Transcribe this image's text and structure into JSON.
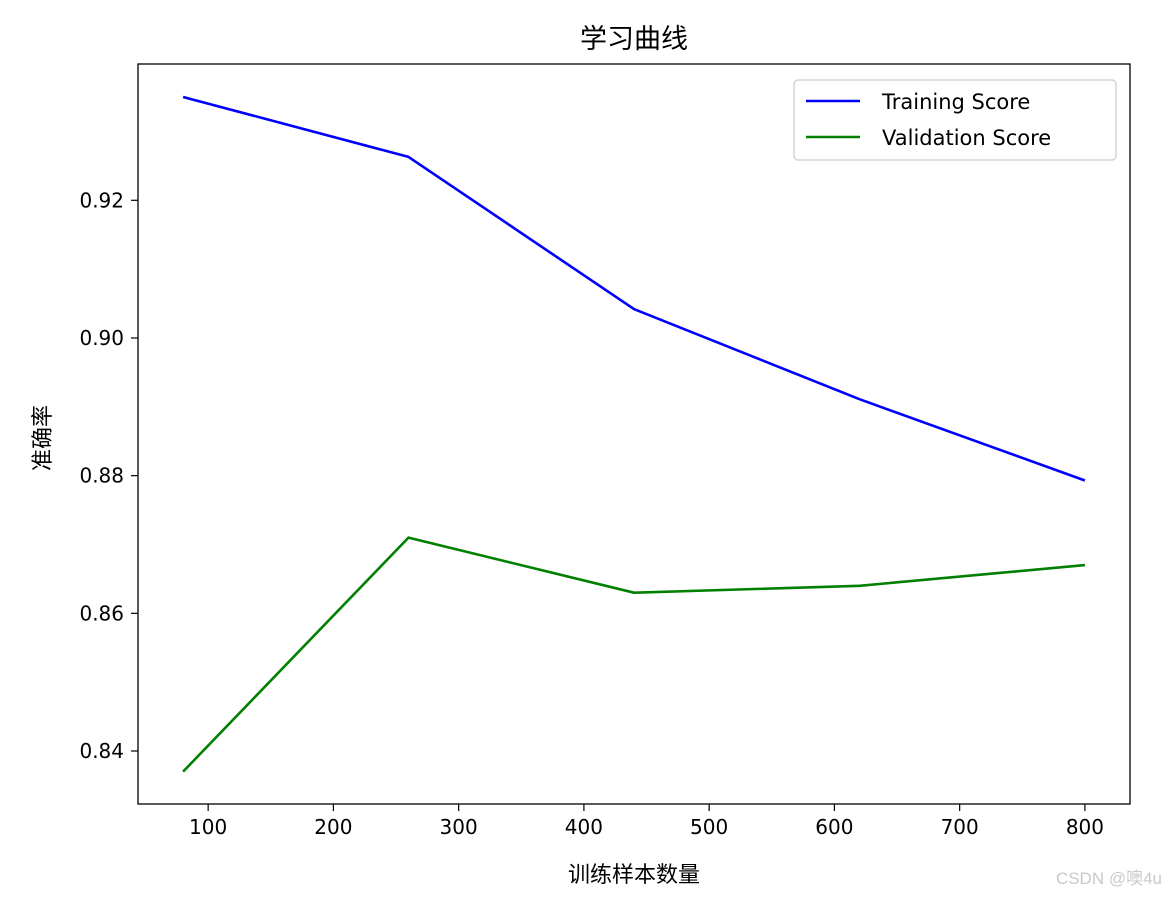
{
  "chart_data": {
    "type": "line",
    "title": "学习曲线",
    "xlabel": "训练样本数量",
    "ylabel": "准确率",
    "x": [
      80,
      260,
      440,
      620,
      800
    ],
    "series": [
      {
        "name": "Training Score",
        "color": "#0000ff",
        "values": [
          0.935,
          0.9263,
          0.9042,
          0.8911,
          0.8793
        ]
      },
      {
        "name": "Validation Score",
        "color": "#008000",
        "values": [
          0.837,
          0.871,
          0.863,
          0.864,
          0.867
        ]
      }
    ],
    "xlim": [
      44,
      836
    ],
    "ylim": [
      0.8323,
      0.9398
    ],
    "xticks": [
      100,
      200,
      300,
      400,
      500,
      600,
      700,
      800
    ],
    "yticks": [
      0.84,
      0.86,
      0.88,
      0.9,
      0.92
    ],
    "ytick_labels": [
      "0.84",
      "0.86",
      "0.88",
      "0.90",
      "0.92"
    ],
    "legend": "top-right",
    "grid": false
  },
  "watermark": "CSDN @噢4u"
}
